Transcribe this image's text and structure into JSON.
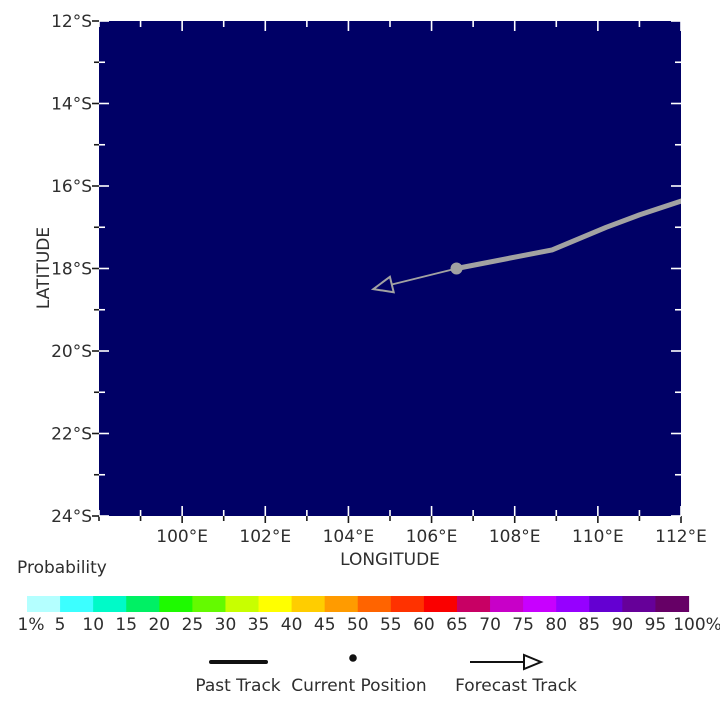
{
  "chart_data": {
    "type": "map_track",
    "lon_range": [
      98,
      112
    ],
    "lat_range_south": [
      12,
      24
    ],
    "lon_major_ticks": [
      {
        "v": 100,
        "label": "100°E"
      },
      {
        "v": 102,
        "label": "102°E"
      },
      {
        "v": 104,
        "label": "104°E"
      },
      {
        "v": 106,
        "label": "106°E"
      },
      {
        "v": 108,
        "label": "108°E"
      },
      {
        "v": 110,
        "label": "110°E"
      },
      {
        "v": 112,
        "label": "112°E"
      }
    ],
    "lon_minor_ticks": [
      98,
      99,
      101,
      103,
      105,
      107,
      109,
      111
    ],
    "lat_major_ticks": [
      {
        "v": 12,
        "label": "12°S"
      },
      {
        "v": 14,
        "label": "14°S"
      },
      {
        "v": 16,
        "label": "16°S"
      },
      {
        "v": 18,
        "label": "18°S"
      },
      {
        "v": 20,
        "label": "20°S"
      },
      {
        "v": 22,
        "label": "22°S"
      },
      {
        "v": 24,
        "label": "24°S"
      }
    ],
    "lat_minor_ticks": [
      13,
      15,
      17,
      19,
      21,
      23
    ],
    "xlabel": "LONGITUDE",
    "ylabel": "LATITUDE",
    "past_track_lon_latS": [
      [
        112.05,
        16.35
      ],
      [
        111.0,
        16.7
      ],
      [
        110.2,
        17.0
      ],
      [
        108.9,
        17.55
      ],
      [
        106.6,
        18.0
      ]
    ],
    "current_position_lon_latS": [
      106.6,
      18.0
    ],
    "forecast_track_lon_latS": [
      [
        106.6,
        18.0
      ],
      [
        104.6,
        18.5
      ]
    ]
  },
  "colorbar": {
    "title": "Probability",
    "tick_labels": [
      "1%",
      "5",
      "10",
      "15",
      "20",
      "25",
      "30",
      "35",
      "40",
      "45",
      "50",
      "55",
      "60",
      "65",
      "70",
      "75",
      "80",
      "85",
      "90",
      "95",
      "100%"
    ],
    "colors": [
      "#b4ffff",
      "#3cffff",
      "#00fac8",
      "#00f064",
      "#1efa00",
      "#64fa00",
      "#c8ff00",
      "#ffff00",
      "#ffcd00",
      "#ff9b00",
      "#ff6400",
      "#ff3200",
      "#fa0000",
      "#c80064",
      "#c800c8",
      "#c800ff",
      "#9600ff",
      "#6400d2",
      "#660099",
      "#660066"
    ]
  },
  "legend": {
    "past_track": "Past Track",
    "current_position": "Current Position",
    "forecast_track": "Forecast Track"
  },
  "colors": {
    "sea": "#000066",
    "track": "#a2a2a2",
    "tick_outer": "#1a1a1a",
    "tick_inner": "#ffffff",
    "legend_ink": "#111111"
  }
}
